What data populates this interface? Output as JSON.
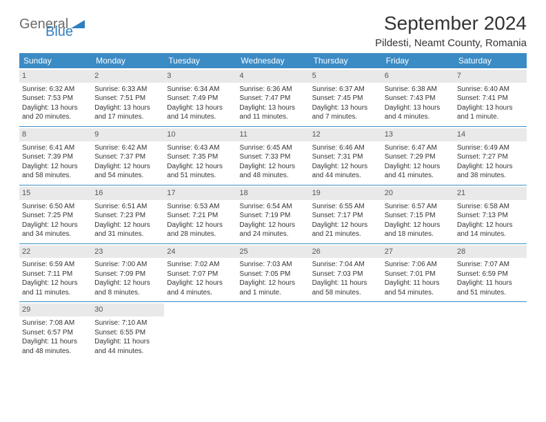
{
  "logo": {
    "part1": "General",
    "part2": "Blue"
  },
  "title": "September 2024",
  "location": "Pildesti, Neamt County, Romania",
  "colors": {
    "header_bg": "#3b8bc5",
    "header_text": "#ffffff",
    "daynum_bg": "#e9e9e9",
    "border": "#3b8bc5",
    "text": "#333333",
    "logo_gray": "#6b6b6b",
    "logo_blue": "#2f7fbf"
  },
  "day_names": [
    "Sunday",
    "Monday",
    "Tuesday",
    "Wednesday",
    "Thursday",
    "Friday",
    "Saturday"
  ],
  "weeks": [
    [
      {
        "n": "1",
        "sr": "Sunrise: 6:32 AM",
        "ss": "Sunset: 7:53 PM",
        "d1": "Daylight: 13 hours",
        "d2": "and 20 minutes."
      },
      {
        "n": "2",
        "sr": "Sunrise: 6:33 AM",
        "ss": "Sunset: 7:51 PM",
        "d1": "Daylight: 13 hours",
        "d2": "and 17 minutes."
      },
      {
        "n": "3",
        "sr": "Sunrise: 6:34 AM",
        "ss": "Sunset: 7:49 PM",
        "d1": "Daylight: 13 hours",
        "d2": "and 14 minutes."
      },
      {
        "n": "4",
        "sr": "Sunrise: 6:36 AM",
        "ss": "Sunset: 7:47 PM",
        "d1": "Daylight: 13 hours",
        "d2": "and 11 minutes."
      },
      {
        "n": "5",
        "sr": "Sunrise: 6:37 AM",
        "ss": "Sunset: 7:45 PM",
        "d1": "Daylight: 13 hours",
        "d2": "and 7 minutes."
      },
      {
        "n": "6",
        "sr": "Sunrise: 6:38 AM",
        "ss": "Sunset: 7:43 PM",
        "d1": "Daylight: 13 hours",
        "d2": "and 4 minutes."
      },
      {
        "n": "7",
        "sr": "Sunrise: 6:40 AM",
        "ss": "Sunset: 7:41 PM",
        "d1": "Daylight: 13 hours",
        "d2": "and 1 minute."
      }
    ],
    [
      {
        "n": "8",
        "sr": "Sunrise: 6:41 AM",
        "ss": "Sunset: 7:39 PM",
        "d1": "Daylight: 12 hours",
        "d2": "and 58 minutes."
      },
      {
        "n": "9",
        "sr": "Sunrise: 6:42 AM",
        "ss": "Sunset: 7:37 PM",
        "d1": "Daylight: 12 hours",
        "d2": "and 54 minutes."
      },
      {
        "n": "10",
        "sr": "Sunrise: 6:43 AM",
        "ss": "Sunset: 7:35 PM",
        "d1": "Daylight: 12 hours",
        "d2": "and 51 minutes."
      },
      {
        "n": "11",
        "sr": "Sunrise: 6:45 AM",
        "ss": "Sunset: 7:33 PM",
        "d1": "Daylight: 12 hours",
        "d2": "and 48 minutes."
      },
      {
        "n": "12",
        "sr": "Sunrise: 6:46 AM",
        "ss": "Sunset: 7:31 PM",
        "d1": "Daylight: 12 hours",
        "d2": "and 44 minutes."
      },
      {
        "n": "13",
        "sr": "Sunrise: 6:47 AM",
        "ss": "Sunset: 7:29 PM",
        "d1": "Daylight: 12 hours",
        "d2": "and 41 minutes."
      },
      {
        "n": "14",
        "sr": "Sunrise: 6:49 AM",
        "ss": "Sunset: 7:27 PM",
        "d1": "Daylight: 12 hours",
        "d2": "and 38 minutes."
      }
    ],
    [
      {
        "n": "15",
        "sr": "Sunrise: 6:50 AM",
        "ss": "Sunset: 7:25 PM",
        "d1": "Daylight: 12 hours",
        "d2": "and 34 minutes."
      },
      {
        "n": "16",
        "sr": "Sunrise: 6:51 AM",
        "ss": "Sunset: 7:23 PM",
        "d1": "Daylight: 12 hours",
        "d2": "and 31 minutes."
      },
      {
        "n": "17",
        "sr": "Sunrise: 6:53 AM",
        "ss": "Sunset: 7:21 PM",
        "d1": "Daylight: 12 hours",
        "d2": "and 28 minutes."
      },
      {
        "n": "18",
        "sr": "Sunrise: 6:54 AM",
        "ss": "Sunset: 7:19 PM",
        "d1": "Daylight: 12 hours",
        "d2": "and 24 minutes."
      },
      {
        "n": "19",
        "sr": "Sunrise: 6:55 AM",
        "ss": "Sunset: 7:17 PM",
        "d1": "Daylight: 12 hours",
        "d2": "and 21 minutes."
      },
      {
        "n": "20",
        "sr": "Sunrise: 6:57 AM",
        "ss": "Sunset: 7:15 PM",
        "d1": "Daylight: 12 hours",
        "d2": "and 18 minutes."
      },
      {
        "n": "21",
        "sr": "Sunrise: 6:58 AM",
        "ss": "Sunset: 7:13 PM",
        "d1": "Daylight: 12 hours",
        "d2": "and 14 minutes."
      }
    ],
    [
      {
        "n": "22",
        "sr": "Sunrise: 6:59 AM",
        "ss": "Sunset: 7:11 PM",
        "d1": "Daylight: 12 hours",
        "d2": "and 11 minutes."
      },
      {
        "n": "23",
        "sr": "Sunrise: 7:00 AM",
        "ss": "Sunset: 7:09 PM",
        "d1": "Daylight: 12 hours",
        "d2": "and 8 minutes."
      },
      {
        "n": "24",
        "sr": "Sunrise: 7:02 AM",
        "ss": "Sunset: 7:07 PM",
        "d1": "Daylight: 12 hours",
        "d2": "and 4 minutes."
      },
      {
        "n": "25",
        "sr": "Sunrise: 7:03 AM",
        "ss": "Sunset: 7:05 PM",
        "d1": "Daylight: 12 hours",
        "d2": "and 1 minute."
      },
      {
        "n": "26",
        "sr": "Sunrise: 7:04 AM",
        "ss": "Sunset: 7:03 PM",
        "d1": "Daylight: 11 hours",
        "d2": "and 58 minutes."
      },
      {
        "n": "27",
        "sr": "Sunrise: 7:06 AM",
        "ss": "Sunset: 7:01 PM",
        "d1": "Daylight: 11 hours",
        "d2": "and 54 minutes."
      },
      {
        "n": "28",
        "sr": "Sunrise: 7:07 AM",
        "ss": "Sunset: 6:59 PM",
        "d1": "Daylight: 11 hours",
        "d2": "and 51 minutes."
      }
    ],
    [
      {
        "n": "29",
        "sr": "Sunrise: 7:08 AM",
        "ss": "Sunset: 6:57 PM",
        "d1": "Daylight: 11 hours",
        "d2": "and 48 minutes."
      },
      {
        "n": "30",
        "sr": "Sunrise: 7:10 AM",
        "ss": "Sunset: 6:55 PM",
        "d1": "Daylight: 11 hours",
        "d2": "and 44 minutes."
      },
      {
        "empty": true
      },
      {
        "empty": true
      },
      {
        "empty": true
      },
      {
        "empty": true
      },
      {
        "empty": true
      }
    ]
  ]
}
